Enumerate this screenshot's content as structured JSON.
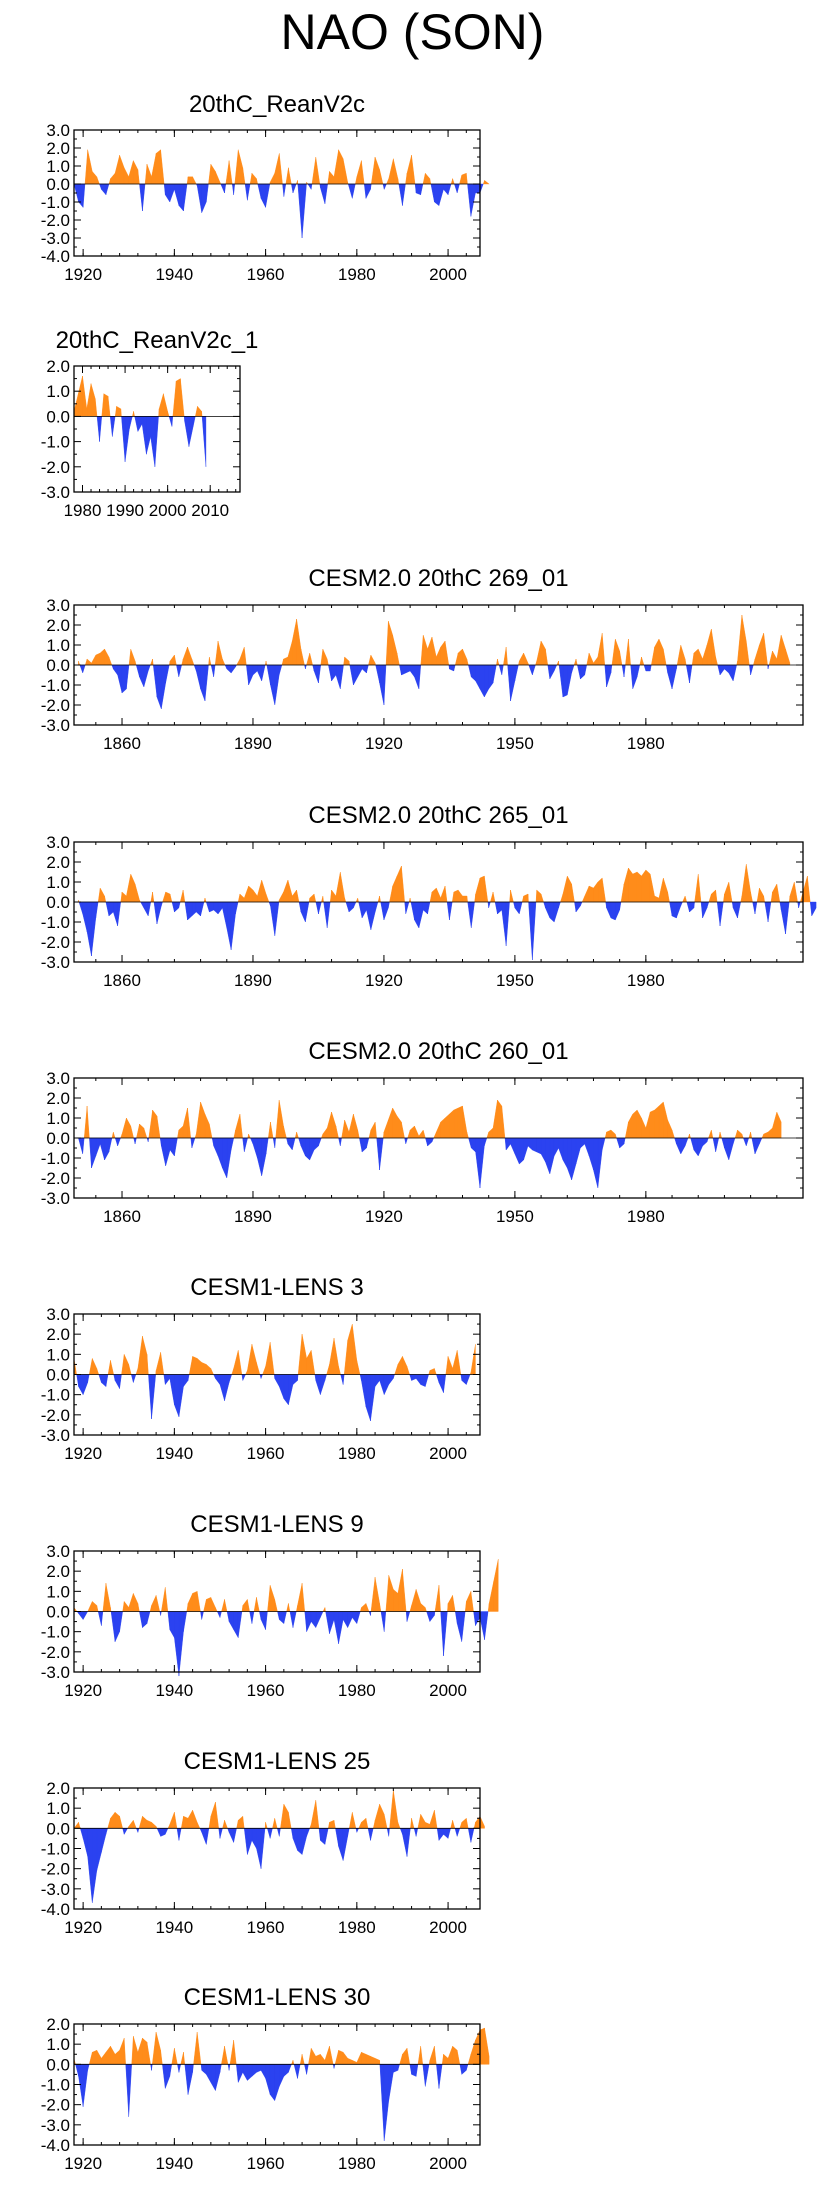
{
  "title": "NAO (SON)",
  "colors": {
    "positive": "#ff8c1a",
    "negative": "#2b42f0"
  },
  "chart_data": [
    {
      "type": "area",
      "title": "20thC_ReanV2c",
      "xlim": [
        1918,
        2007
      ],
      "ylim": [
        -4.0,
        3.0
      ],
      "yticks": [
        "3.0",
        "2.0",
        "1.0",
        "0.0",
        "-1.0",
        "-2.0",
        "-3.0",
        "-4.0"
      ],
      "xticks": [
        "1920",
        "1940",
        "1960",
        "1980",
        "2000"
      ],
      "x_start": 1918,
      "values": [
        0.0,
        -1.0,
        -1.3,
        1.9,
        0.7,
        0.4,
        -0.3,
        -0.6,
        0.3,
        0.6,
        1.6,
        0.9,
        0.4,
        1.3,
        0.8,
        -1.5,
        1.1,
        0.4,
        1.7,
        1.9,
        -0.6,
        -1.0,
        -0.3,
        -1.2,
        -1.5,
        0.4,
        0.4,
        -0.1,
        -1.6,
        -1.0,
        1.1,
        0.7,
        0.1,
        -0.5,
        1.3,
        -0.6,
        1.9,
        0.9,
        -0.9,
        0.6,
        0.3,
        -0.8,
        -1.3,
        0.1,
        0.6,
        1.7,
        -0.7,
        0.9,
        -0.5,
        0.2,
        -3.0,
        0.1,
        -0.3,
        1.5,
        -0.2,
        -1.1,
        0.7,
        0.4,
        1.9,
        1.4,
        0.1,
        -0.8,
        0.4,
        1.3,
        -0.8,
        -0.3,
        1.5,
        0.8,
        -0.3,
        0.3,
        1.4,
        0.3,
        -1.2,
        0.6,
        1.6,
        -0.5,
        -0.6,
        0.6,
        0.3,
        -1.0,
        -1.2,
        -0.3,
        -0.6,
        0.3,
        -0.5,
        0.5,
        0.6,
        -1.8,
        -0.5,
        -0.5,
        0.2,
        0.0
      ]
    },
    {
      "type": "area",
      "title": "20thC_ReanV2c_1",
      "xlim": [
        1978,
        2017
      ],
      "ylim": [
        -3.0,
        2.0
      ],
      "yticks": [
        "2.0",
        "1.0",
        "0.0",
        "-1.0",
        "-2.0",
        "-3.0"
      ],
      "xticks": [
        "1980",
        "1990",
        "2000",
        "2010"
      ],
      "x_start": 1978,
      "values": [
        0.2,
        0.9,
        1.6,
        0.3,
        1.3,
        0.7,
        -1.0,
        0.9,
        0.8,
        -0.8,
        0.4,
        0.3,
        -1.8,
        -0.5,
        0.2,
        -0.6,
        -0.3,
        -1.5,
        -0.8,
        -2.0,
        0.3,
        0.9,
        0.2,
        -0.4,
        1.4,
        1.5,
        -0.2,
        -1.2,
        -0.4,
        0.4,
        0.2,
        -2.0
      ]
    },
    {
      "type": "area",
      "title": "CESM2.0 20thC 269_01",
      "xlim": [
        1849,
        2016
      ],
      "ylim": [
        -3.0,
        3.0
      ],
      "yticks": [
        "3.0",
        "2.0",
        "1.0",
        "0.0",
        "-1.0",
        "-2.0",
        "-3.0"
      ],
      "xticks": [
        "1860",
        "1890",
        "1920",
        "1950",
        "1980"
      ],
      "x_start": 1850,
      "values": [
        0.2,
        -0.4,
        0.3,
        0.1,
        0.5,
        0.6,
        0.8,
        0.4,
        -0.2,
        -0.5,
        -1.4,
        -1.2,
        0.8,
        0.2,
        -0.6,
        -1.1,
        -0.3,
        0.3,
        -1.6,
        -2.2,
        -0.9,
        0.2,
        0.5,
        -0.6,
        0.3,
        0.9,
        0.3,
        -0.3,
        -1.2,
        -1.8,
        0.4,
        -0.6,
        1.2,
        0.3,
        -0.2,
        -0.4,
        -0.1,
        0.3,
        0.9,
        -1.0,
        -0.5,
        -0.3,
        -0.8,
        0.2,
        -1.0,
        -2.0,
        -0.5,
        0.3,
        0.4,
        1.2,
        2.3,
        0.8,
        -0.2,
        0.6,
        -0.3,
        -0.9,
        0.8,
        0.3,
        -0.8,
        -0.5,
        -1.2,
        0.4,
        0.2,
        -1.0,
        -0.6,
        -0.2,
        -0.4,
        0.5,
        0.1,
        -0.9,
        -2.0,
        2.2,
        1.5,
        0.6,
        -0.5,
        -0.4,
        -0.3,
        -0.6,
        -1.2,
        1.5,
        0.8,
        1.4,
        0.4,
        0.9,
        1.2,
        -0.2,
        -0.3,
        0.6,
        0.8,
        0.3,
        -0.6,
        -0.8,
        -1.2,
        -1.6,
        -1.2,
        -0.9,
        0.3,
        -0.5,
        0.9,
        -1.8,
        -0.8,
        0.2,
        0.6,
        0.1,
        -0.5,
        0.2,
        1.2,
        0.8,
        -0.7,
        -0.3,
        0.2,
        -1.6,
        -1.5,
        -0.4,
        0.3,
        -0.7,
        -0.5,
        0.6,
        0.1,
        0.4,
        1.6,
        -1.1,
        -0.4,
        1.3,
        0.7,
        -0.6,
        1.3,
        -1.2,
        -0.6,
        0.4,
        -0.3,
        -0.3,
        0.9,
        1.3,
        0.8,
        -0.4,
        -1.2,
        -0.2,
        1.0,
        0.3,
        -0.9,
        0.6,
        0.8,
        0.3,
        1.0,
        1.8,
        0.4,
        -0.5,
        -0.2,
        -0.4,
        -0.8,
        0.2,
        2.5,
        1.2,
        -0.5,
        0.3,
        1.0,
        1.6,
        -0.2,
        0.7,
        0.3,
        1.5,
        0.8,
        0.1
      ]
    },
    {
      "type": "area",
      "title": "CESM2.0 20thC 265_01",
      "xlim": [
        1849,
        2016
      ],
      "ylim": [
        -3.0,
        3.0
      ],
      "yticks": [
        "3.0",
        "2.0",
        "1.0",
        "0.0",
        "-1.0",
        "-2.0",
        "-3.0"
      ],
      "xticks": [
        "1860",
        "1890",
        "1920",
        "1950",
        "1980"
      ],
      "x_start": 1850,
      "values": [
        0.1,
        -0.6,
        -1.5,
        -2.7,
        -0.8,
        0.7,
        0.3,
        -0.7,
        -0.5,
        -1.2,
        0.5,
        0.3,
        1.4,
        0.9,
        0.1,
        -0.3,
        -0.7,
        0.5,
        -1.1,
        -0.2,
        0.5,
        0.4,
        -0.5,
        -0.3,
        0.6,
        -0.9,
        -0.7,
        -0.5,
        -0.7,
        0.2,
        -0.5,
        -0.4,
        -0.6,
        -0.3,
        -1.3,
        -2.4,
        -0.6,
        0.4,
        0.2,
        0.8,
        0.6,
        0.3,
        1.1,
        0.4,
        -0.2,
        -1.7,
        0.1,
        0.5,
        1.1,
        0.3,
        0.6,
        -0.5,
        -1.0,
        0.2,
        0.4,
        -0.6,
        0.3,
        -1.3,
        0.6,
        0.3,
        1.5,
        0.2,
        -0.5,
        -0.3,
        0.2,
        -0.8,
        -0.4,
        -1.4,
        -0.5,
        0.3,
        -0.9,
        -0.3,
        0.8,
        1.3,
        1.8,
        -0.6,
        0.2,
        -0.9,
        -1.3,
        -0.4,
        -0.6,
        0.5,
        0.7,
        0.2,
        0.8,
        -0.9,
        0.5,
        0.6,
        0.3,
        0.3,
        -1.3,
        0.4,
        1.2,
        1.3,
        -0.3,
        0.5,
        -0.6,
        -0.4,
        -2.2,
        0.6,
        -0.3,
        -0.6,
        0.3,
        0.4,
        -2.9,
        0.6,
        0.4,
        -0.3,
        -0.8,
        -1.0,
        -0.3,
        0.4,
        1.3,
        0.9,
        -0.5,
        -0.2,
        0.3,
        0.8,
        0.7,
        1.0,
        1.2,
        -0.3,
        -0.8,
        -0.9,
        -0.4,
        0.9,
        1.7,
        1.4,
        1.5,
        1.3,
        1.6,
        1.4,
        0.3,
        0.2,
        1.2,
        0.5,
        -0.7,
        -0.8,
        -0.2,
        0.3,
        -0.5,
        -0.3,
        1.4,
        -0.8,
        -0.3,
        0.4,
        0.6,
        -1.2,
        0.4,
        1.0,
        -0.3,
        -0.8,
        0.3,
        1.9,
        0.5,
        -0.6,
        0.7,
        0.3,
        -1.0,
        0.5,
        0.9,
        -0.4,
        -1.6,
        0.3,
        1.0,
        -0.3,
        0.5,
        1.3,
        -0.7,
        -0.3
      ]
    },
    {
      "type": "area",
      "title": "CESM2.0 20thC 260_01",
      "xlim": [
        1849,
        2016
      ],
      "ylim": [
        -3.0,
        3.0
      ],
      "yticks": [
        "3.0",
        "2.0",
        "1.0",
        "0.0",
        "-1.0",
        "-2.0",
        "-3.0"
      ],
      "xticks": [
        "1860",
        "1890",
        "1920",
        "1950",
        "1980"
      ],
      "x_start": 1850,
      "values": [
        0.0,
        -0.8,
        1.6,
        -1.5,
        -0.9,
        -0.3,
        -1.1,
        -0.7,
        0.3,
        -0.4,
        0.2,
        1.0,
        0.6,
        -0.3,
        0.7,
        0.5,
        -0.2,
        1.4,
        1.1,
        -0.4,
        -1.4,
        -0.6,
        -0.9,
        0.4,
        0.6,
        1.5,
        -0.5,
        0.2,
        1.8,
        1.2,
        0.7,
        -0.4,
        -0.9,
        -1.5,
        -2.0,
        -0.6,
        0.4,
        1.2,
        -0.7,
        0.2,
        -0.3,
        -1.0,
        -1.9,
        -0.8,
        0.8,
        -0.5,
        1.9,
        0.6,
        -0.3,
        -0.6,
        0.3,
        -0.4,
        -0.9,
        -1.1,
        -0.6,
        -0.4,
        0.2,
        0.5,
        1.3,
        0.6,
        -0.4,
        0.9,
        0.3,
        1.2,
        0.4,
        -0.7,
        -0.5,
        0.4,
        0.8,
        -1.6,
        0.3,
        0.9,
        1.5,
        1.1,
        0.8,
        -0.3,
        0.4,
        0.6,
        0.1,
        0.4,
        -0.4,
        -0.2,
        0.3,
        0.8,
        1.0,
        1.2,
        1.4,
        1.5,
        1.6,
        0.3,
        -0.5,
        -0.7,
        -2.5,
        -0.4,
        0.3,
        0.5,
        1.9,
        1.6,
        -0.6,
        -0.3,
        -0.8,
        -1.3,
        -1.1,
        -0.4,
        -0.6,
        -0.7,
        -0.8,
        -1.2,
        -1.8,
        -0.9,
        -0.5,
        -1.1,
        -1.5,
        -2.1,
        -1.3,
        -0.5,
        -0.3,
        -0.9,
        -1.6,
        -2.5,
        -0.6,
        0.3,
        0.4,
        0.2,
        -0.5,
        -0.3,
        0.8,
        1.2,
        1.4,
        1.0,
        0.5,
        1.3,
        1.4,
        1.6,
        1.8,
        0.9,
        0.4,
        -0.3,
        -0.8,
        -0.4,
        0.2,
        -0.6,
        -0.9,
        -0.4,
        -0.2,
        0.4,
        -0.7,
        0.3,
        -0.5,
        -1.1,
        -0.3,
        0.4,
        0.2,
        -0.4,
        0.3,
        -0.8,
        -0.3,
        0.2,
        0.3,
        0.5,
        1.3,
        0.8
      ]
    },
    {
      "type": "area",
      "title": "CESM1-LENS 3",
      "xlim": [
        1918,
        2007
      ],
      "ylim": [
        -3.0,
        3.0
      ],
      "yticks": [
        "3.0",
        "2.0",
        "1.0",
        "0.0",
        "-1.0",
        "-2.0",
        "-3.0"
      ],
      "xticks": [
        "1920",
        "1940",
        "1960",
        "1980",
        "2000"
      ],
      "x_start": 1918,
      "values": [
        0.8,
        -0.6,
        -1.0,
        -0.4,
        0.8,
        0.3,
        -0.4,
        -0.6,
        0.7,
        -0.3,
        -0.7,
        1.0,
        0.5,
        -0.4,
        0.3,
        1.9,
        1.0,
        -2.2,
        0.2,
        1.1,
        -0.5,
        -0.2,
        -1.5,
        -2.1,
        -0.6,
        -0.3,
        0.9,
        0.8,
        0.6,
        0.5,
        0.3,
        -0.2,
        -0.5,
        -1.3,
        -0.4,
        0.3,
        1.2,
        -0.3,
        0.2,
        1.5,
        0.6,
        -0.2,
        0.4,
        1.6,
        -0.2,
        -0.6,
        -1.2,
        -1.5,
        -0.5,
        -0.3,
        2.0,
        0.8,
        1.2,
        -0.3,
        -1.0,
        -0.3,
        0.5,
        1.8,
        0.4,
        -0.5,
        1.7,
        2.5,
        0.7,
        -0.3,
        -1.6,
        -2.3,
        -0.6,
        -0.3,
        -1.0,
        -0.5,
        -0.2,
        0.5,
        0.9,
        0.4,
        -0.3,
        -0.2,
        -0.5,
        -0.6,
        0.2,
        0.3,
        -0.4,
        -0.9,
        0.9,
        0.3,
        1.2,
        -0.3,
        -0.5,
        0.1,
        1.5
      ]
    },
    {
      "type": "area",
      "title": "CESM1-LENS 9",
      "xlim": [
        1918,
        2007
      ],
      "ylim": [
        -3.0,
        3.0
      ],
      "yticks": [
        "3.0",
        "2.0",
        "1.0",
        "0.0",
        "-1.0",
        "-2.0",
        "-3.0"
      ],
      "xticks": [
        "1920",
        "1940",
        "1960",
        "1980",
        "2000"
      ],
      "x_start": 1918,
      "values": [
        0.2,
        -0.1,
        -0.4,
        0.0,
        0.5,
        0.3,
        -0.7,
        1.4,
        0.2,
        -1.5,
        -1.0,
        0.5,
        0.2,
        0.9,
        0.4,
        -0.8,
        -0.6,
        0.3,
        0.8,
        -0.2,
        1.2,
        -0.9,
        -1.3,
        -3.2,
        -1.0,
        0.4,
        0.9,
        1.0,
        -0.4,
        0.6,
        0.7,
        0.2,
        -0.3,
        0.6,
        -0.5,
        -0.9,
        -1.3,
        0.3,
        0.6,
        -0.6,
        0.7,
        -0.4,
        -0.9,
        1.3,
        0.6,
        -0.4,
        -0.6,
        0.4,
        -0.8,
        0.3,
        1.4,
        -1.0,
        -0.5,
        -0.8,
        -0.3,
        0.2,
        -1.1,
        -0.4,
        -1.6,
        -0.4,
        -0.8,
        -0.3,
        -0.6,
        0.2,
        0.4,
        -0.2,
        1.7,
        0.4,
        -1.0,
        1.8,
        1.1,
        0.9,
        2.1,
        -0.5,
        0.3,
        1.1,
        0.4,
        0.2,
        -0.5,
        -0.2,
        1.3,
        -2.2,
        0.4,
        0.8,
        -0.6,
        -1.5,
        0.5,
        1.0,
        -0.7,
        -0.3,
        -1.4,
        0.4,
        1.5,
        2.6
      ]
    },
    {
      "type": "area",
      "title": "CESM1-LENS 25",
      "xlim": [
        1918,
        2007
      ],
      "ylim": [
        -4.0,
        2.0
      ],
      "yticks": [
        "2.0",
        "1.0",
        "0.0",
        "-1.0",
        "-2.0",
        "-3.0",
        "-4.0"
      ],
      "xticks": [
        "1920",
        "1940",
        "1960",
        "1980",
        "2000"
      ],
      "x_start": 1918,
      "values": [
        0.0,
        0.3,
        -0.5,
        -1.4,
        -3.7,
        -2.1,
        -1.2,
        -0.3,
        0.5,
        0.8,
        0.6,
        -0.3,
        0.1,
        0.4,
        -0.2,
        0.6,
        0.4,
        0.3,
        0.1,
        -0.4,
        -0.3,
        0.2,
        0.8,
        -0.6,
        0.6,
        0.5,
        0.9,
        0.3,
        -0.2,
        -0.8,
        0.6,
        1.3,
        -0.5,
        0.4,
        -0.2,
        -0.7,
        0.4,
        0.6,
        -1.3,
        -0.6,
        -1.0,
        -2.0,
        0.3,
        -0.5,
        0.5,
        -0.4,
        1.2,
        0.8,
        -0.5,
        -1.1,
        -1.3,
        -0.4,
        0.2,
        1.4,
        -0.6,
        -0.8,
        0.3,
        0.4,
        -0.9,
        -1.6,
        -0.4,
        0.8,
        -0.2,
        0.3,
        0.5,
        -0.6,
        0.4,
        1.2,
        0.7,
        -0.4,
        1.9,
        0.3,
        -0.3,
        -1.4,
        0.5,
        -0.4,
        0.7,
        0.3,
        0.2,
        0.9,
        -0.6,
        -0.3,
        -0.5,
        0.4,
        -0.4,
        0.3,
        0.5,
        -0.7,
        0.3,
        0.6,
        0.1
      ]
    },
    {
      "type": "area",
      "title": "CESM1-LENS 30",
      "xlim": [
        1918,
        2007
      ],
      "ylim": [
        -4.0,
        2.0
      ],
      "yticks": [
        "2.0",
        "1.0",
        "0.0",
        "-1.0",
        "-2.0",
        "-3.0",
        "-4.0"
      ],
      "xticks": [
        "1920",
        "1940",
        "1960",
        "1980",
        "2000"
      ],
      "x_start": 1918,
      "values": [
        0.3,
        -0.6,
        -2.1,
        -0.3,
        0.6,
        0.7,
        0.3,
        0.6,
        0.9,
        0.5,
        0.7,
        1.3,
        -2.6,
        1.4,
        0.6,
        1.3,
        1.1,
        -0.3,
        1.6,
        0.7,
        -1.2,
        -0.6,
        0.8,
        -0.4,
        0.6,
        -1.5,
        -0.4,
        1.6,
        -0.3,
        -0.5,
        -0.9,
        -1.3,
        -0.4,
        0.9,
        -0.3,
        1.2,
        -0.9,
        -0.4,
        -0.8,
        -0.6,
        -0.4,
        -0.3,
        -0.7,
        -1.5,
        -1.8,
        -1.1,
        -0.6,
        -0.4,
        0.2,
        -0.7,
        0.5,
        -0.5,
        0.8,
        0.4,
        0.5,
        0.2,
        0.9,
        -0.2,
        0.7,
        0.6,
        0.3,
        0.2,
        0.1,
        0.6,
        0.5,
        0.4,
        0.3,
        0.2,
        -3.8,
        -1.8,
        -0.4,
        -0.3,
        0.5,
        0.8,
        -0.5,
        -0.6,
        0.9,
        -1.1,
        0.2,
        0.9,
        -1.2,
        0.5,
        0.3,
        0.9,
        0.7,
        -0.5,
        -0.3,
        0.5,
        1.2,
        1.7,
        1.8,
        0.4
      ]
    }
  ]
}
